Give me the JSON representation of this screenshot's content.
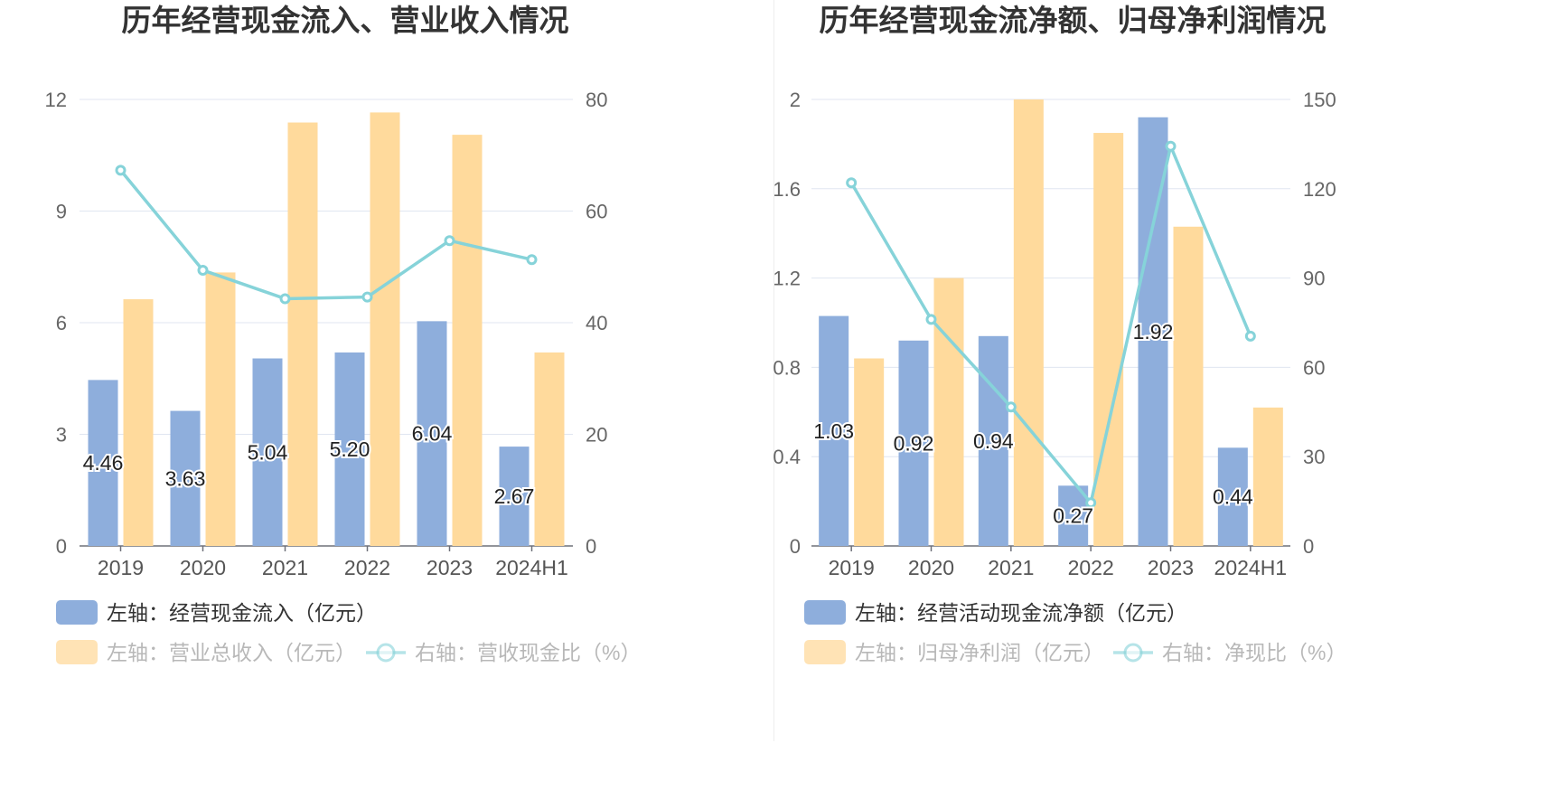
{
  "chart_data": [
    {
      "type": "bar",
      "title": "历年经营现金流入、营业收入情况",
      "categories": [
        "2019",
        "2020",
        "2021",
        "2022",
        "2023",
        "2024H1"
      ],
      "left_axis": {
        "ylim": [
          0,
          12
        ],
        "ticks": [
          "0",
          "3",
          "6",
          "9",
          "12"
        ]
      },
      "right_axis": {
        "ylim": [
          0,
          80
        ],
        "ticks": [
          "0",
          "20",
          "40",
          "60",
          "80"
        ]
      },
      "grid": true,
      "legend_position": "bottom-left",
      "series": [
        {
          "name": "左轴：经营现金流入（亿元）",
          "type": "bar",
          "axis": "left",
          "color": "#8eaedc",
          "values": [
            4.46,
            3.63,
            5.04,
            5.2,
            6.04,
            2.67
          ],
          "labels": [
            "4.46",
            "3.63",
            "5.04",
            "5.20",
            "6.04",
            "2.67"
          ]
        },
        {
          "name": "左轴：营业总收入（亿元）",
          "type": "bar",
          "axis": "left",
          "color": "#ffda9c",
          "values": [
            6.63,
            7.35,
            11.38,
            11.65,
            11.05,
            5.2
          ]
        },
        {
          "name": "右轴：营收现金比（%）",
          "type": "line",
          "axis": "right",
          "color": "#86d3d9",
          "values": [
            67.3,
            49.4,
            44.3,
            44.6,
            54.7,
            51.3
          ]
        }
      ]
    },
    {
      "type": "bar",
      "title": "历年经营现金流净额、归母净利润情况",
      "categories": [
        "2019",
        "2020",
        "2021",
        "2022",
        "2023",
        "2024H1"
      ],
      "left_axis": {
        "ylim": [
          0,
          2
        ],
        "ticks": [
          "0",
          "0.4",
          "0.8",
          "1.2",
          "1.6",
          "2"
        ]
      },
      "right_axis": {
        "ylim": [
          0,
          150
        ],
        "ticks": [
          "0",
          "30",
          "60",
          "90",
          "120",
          "150"
        ]
      },
      "grid": true,
      "legend_position": "bottom-left",
      "series": [
        {
          "name": "左轴：经营活动现金流净额（亿元）",
          "type": "bar",
          "axis": "left",
          "color": "#8eaedc",
          "values": [
            1.03,
            0.92,
            0.94,
            0.27,
            1.92,
            0.44
          ],
          "labels": [
            "1.03",
            "0.92",
            "0.94",
            "0.27",
            "1.92",
            "0.44"
          ]
        },
        {
          "name": "左轴：归母净利润（亿元）",
          "type": "bar",
          "axis": "left",
          "color": "#ffda9c",
          "values": [
            0.84,
            1.2,
            2.0,
            1.85,
            1.43,
            0.62
          ]
        },
        {
          "name": "右轴：净现比（%）",
          "type": "line",
          "axis": "right",
          "color": "#86d3d9",
          "values": [
            122.0,
            76.1,
            46.7,
            14.5,
            134.3,
            70.5
          ]
        }
      ]
    }
  ]
}
